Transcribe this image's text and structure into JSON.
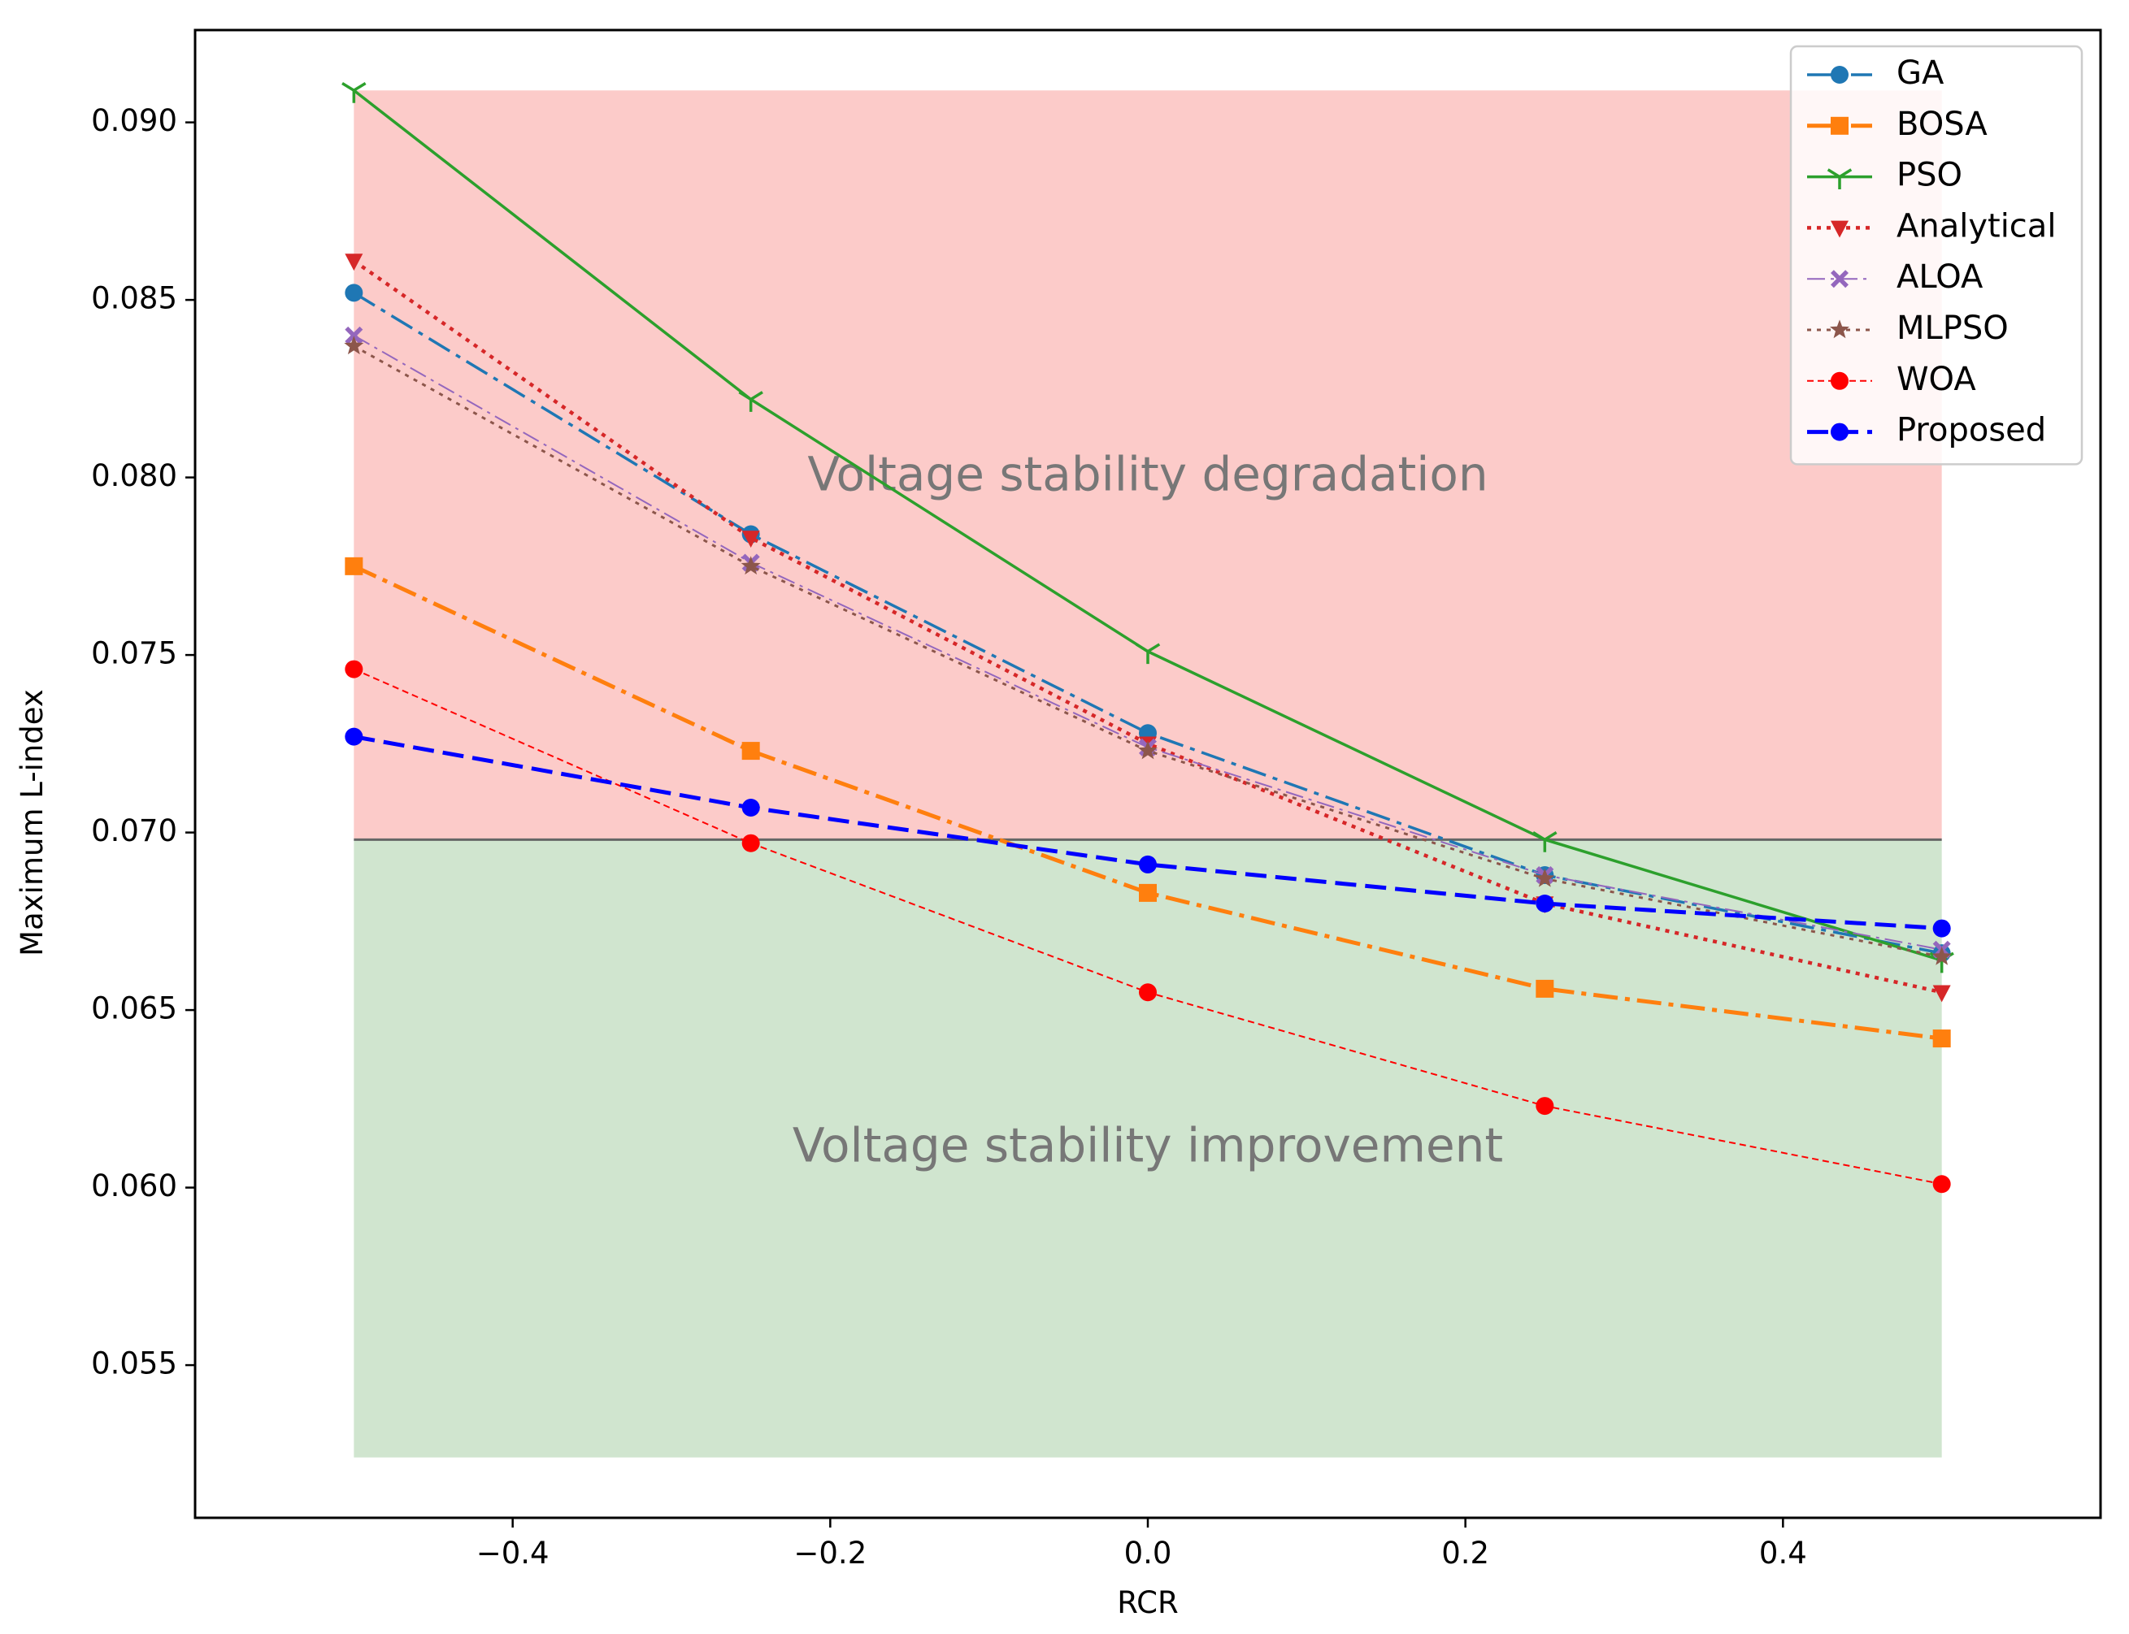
{
  "chart_data": {
    "type": "line",
    "title": "",
    "xlabel": "RCR",
    "ylabel": "Maximum L-index",
    "xlim": [
      -0.6,
      0.6
    ],
    "ylim": [
      0.0507,
      0.0926
    ],
    "x_ticks": [
      -0.4,
      -0.2,
      0.0,
      0.2,
      0.4
    ],
    "x_tick_labels": [
      "−0.4",
      "−0.2",
      "0.0",
      "0.2",
      "0.4"
    ],
    "y_ticks": [
      0.055,
      0.06,
      0.065,
      0.07,
      0.075,
      0.08,
      0.085,
      0.09
    ],
    "y_tick_labels": [
      "0.055",
      "0.060",
      "0.065",
      "0.070",
      "0.075",
      "0.080",
      "0.085",
      "0.090"
    ],
    "grid": false,
    "legend_position": "top-right",
    "regions": [
      {
        "name": "degradation",
        "label": "Voltage stability degradation",
        "x_range": [
          -0.5,
          0.5
        ],
        "y_range": [
          0.0698,
          0.0909
        ],
        "color": "#fccbc9",
        "label_at": [
          0.0,
          0.08
        ]
      },
      {
        "name": "improvement",
        "label": "Voltage stability improvement",
        "x_range": [
          -0.5,
          0.5
        ],
        "y_range": [
          0.0524,
          0.0698
        ],
        "color": "#d0e5cf",
        "label_at": [
          0.0,
          0.0611
        ]
      }
    ],
    "threshold": {
      "y": 0.0698,
      "color": "#666666"
    },
    "x": [
      -0.5,
      -0.25,
      0.0,
      0.25,
      0.5
    ],
    "series": [
      {
        "name": "GA",
        "values": [
          0.0852,
          0.0784,
          0.0728,
          0.0688,
          0.0666
        ],
        "color": "#1f77b4",
        "dash": "dashdot",
        "marker": "circle",
        "width": 3.5
      },
      {
        "name": "BOSA",
        "values": [
          0.0775,
          0.0723,
          0.0683,
          0.0656,
          0.0642
        ],
        "color": "#ff7f0e",
        "dash": "dashdot",
        "marker": "square",
        "width": 5
      },
      {
        "name": "PSO",
        "values": [
          0.0909,
          0.0822,
          0.0751,
          0.0698,
          0.0664
        ],
        "color": "#2ca02c",
        "dash": "solid",
        "marker": "tri",
        "width": 3.5
      },
      {
        "name": "Analytical",
        "values": [
          0.0861,
          0.0783,
          0.0725,
          0.068,
          0.0655
        ],
        "color": "#d62728",
        "dash": "dotted",
        "marker": "triangle-down",
        "width": 4.5
      },
      {
        "name": "ALOA",
        "values": [
          0.084,
          0.0776,
          0.0724,
          0.0688,
          0.0667
        ],
        "color": "#9467bd",
        "dash": "dashdot-thin",
        "marker": "x-filled",
        "width": 2
      },
      {
        "name": "MLPSO",
        "values": [
          0.0837,
          0.0775,
          0.0723,
          0.0687,
          0.0665
        ],
        "color": "#8c564b",
        "dash": "dotted",
        "marker": "star",
        "width": 3
      },
      {
        "name": "WOA",
        "values": [
          0.0746,
          0.0697,
          0.0655,
          0.0623,
          0.0601
        ],
        "color": "#ff0000",
        "dash": "dashed-thin",
        "marker": "circle",
        "width": 2
      },
      {
        "name": "Proposed",
        "values": [
          0.0727,
          0.0707,
          0.0691,
          0.068,
          0.0673
        ],
        "color": "#0000ff",
        "dash": "dashed",
        "marker": "circle",
        "width": 5
      }
    ]
  }
}
